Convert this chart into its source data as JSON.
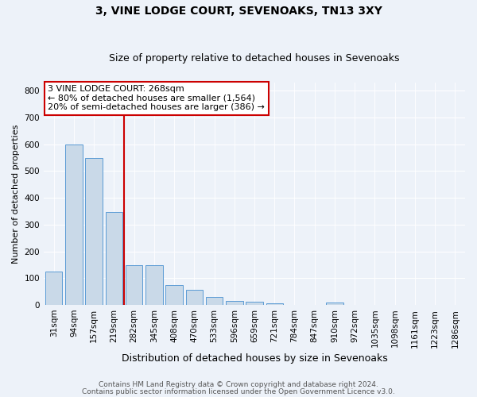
{
  "title1": "3, VINE LODGE COURT, SEVENOAKS, TN13 3XY",
  "title2": "Size of property relative to detached houses in Sevenoaks",
  "xlabel": "Distribution of detached houses by size in Sevenoaks",
  "ylabel": "Number of detached properties",
  "footer1": "Contains HM Land Registry data © Crown copyright and database right 2024.",
  "footer2": "Contains public sector information licensed under the Open Government Licence v3.0.",
  "categories": [
    "31sqm",
    "94sqm",
    "157sqm",
    "219sqm",
    "282sqm",
    "345sqm",
    "408sqm",
    "470sqm",
    "533sqm",
    "596sqm",
    "659sqm",
    "721sqm",
    "784sqm",
    "847sqm",
    "910sqm",
    "972sqm",
    "1035sqm",
    "1098sqm",
    "1161sqm",
    "1223sqm",
    "1286sqm"
  ],
  "values": [
    125,
    600,
    550,
    348,
    148,
    148,
    75,
    55,
    30,
    15,
    12,
    7,
    0,
    0,
    8,
    0,
    0,
    0,
    0,
    0,
    0
  ],
  "bar_color": "#c9d9e8",
  "bar_edge_color": "#5b9bd5",
  "vline_color": "#cc0000",
  "vline_x_index": 3.5,
  "annotation_box_color": "#cc0000",
  "annotation_text1": "3 VINE LODGE COURT: 268sqm",
  "annotation_text2": "← 80% of detached houses are smaller (1,564)",
  "annotation_text3": "20% of semi-detached houses are larger (386) →",
  "ylim": [
    0,
    830
  ],
  "yticks": [
    0,
    100,
    200,
    300,
    400,
    500,
    600,
    700,
    800
  ],
  "background_color": "#edf2f9",
  "plot_bg_color": "#edf2f9",
  "title_fontsize": 10,
  "subtitle_fontsize": 9,
  "ylabel_fontsize": 8,
  "xlabel_fontsize": 9,
  "tick_fontsize": 7.5,
  "footer_fontsize": 6.5,
  "ann_fontsize": 8
}
